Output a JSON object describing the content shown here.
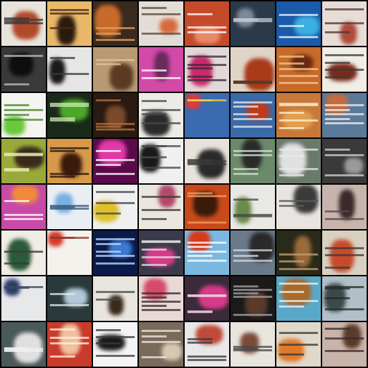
{
  "grid": {
    "rows": 8,
    "cols": 8,
    "background": "#000000",
    "tiles": [
      {
        "bg": "#e8e4dc",
        "blob": "#b04a2a",
        "ink": "#3a3a3a",
        "light": true
      },
      {
        "bg": "#e9b86a",
        "blob": "#2b1a10",
        "ink": "#4a2a10",
        "light": false
      },
      {
        "bg": "#3a2a1e",
        "blob": "#c86a2a",
        "ink": "#e0a060",
        "light": false
      },
      {
        "bg": "#e4ddd6",
        "blob": "#d86a3a",
        "ink": "#5a4a40",
        "light": true
      },
      {
        "bg": "#c44a2a",
        "blob": "#e88a6a",
        "ink": "#ffffff",
        "light": false
      },
      {
        "bg": "#2a3a48",
        "blob": "#7a8a98",
        "ink": "#c0c8d0",
        "light": false
      },
      {
        "bg": "#1a5aa8",
        "blob": "#3ab0e0",
        "ink": "#e8f4ff",
        "light": false
      },
      {
        "bg": "#e8dcd6",
        "blob": "#b04a3a",
        "ink": "#4a3a30",
        "light": true
      },
      {
        "bg": "#3a3a3a",
        "blob": "#0e0e0e",
        "ink": "#bdbdbd",
        "light": false
      },
      {
        "bg": "#e6e6e6",
        "blob": "#1a1a1a",
        "ink": "#3a3a3a",
        "light": true
      },
      {
        "bg": "#b89a72",
        "blob": "#5a3a22",
        "ink": "#e0c09a",
        "light": false
      },
      {
        "bg": "#d24aa8",
        "blob": "#6a2a5a",
        "ink": "#ffffff",
        "light": false
      },
      {
        "bg": "#e2d8d8",
        "blob": "#c82a6a",
        "ink": "#3a2a3a",
        "light": true
      },
      {
        "bg": "#e0d4c6",
        "blob": "#a83a1a",
        "ink": "#5a3a2a",
        "light": true
      },
      {
        "bg": "#c86a2a",
        "blob": "#6a2a10",
        "ink": "#f0c890",
        "light": false
      },
      {
        "bg": "#f0ece6",
        "blob": "#7a2a1a",
        "ink": "#3a3a3a",
        "light": true
      },
      {
        "bg": "#f4f4f0",
        "blob": "#6ac83a",
        "ink": "#4a8a2a",
        "light": true
      },
      {
        "bg": "#1a2a1a",
        "blob": "#4aa82a",
        "ink": "#cfe8b0",
        "light": false
      },
      {
        "bg": "#2a1a10",
        "blob": "#7a4a2a",
        "ink": "#b07040",
        "light": false
      },
      {
        "bg": "#ecebe6",
        "blob": "#2a2a2a",
        "ink": "#4a4a4a",
        "light": true
      },
      {
        "bg": "#3a6ab0",
        "blob": "#e03a3a",
        "ink": "#f0d040",
        "light": false
      },
      {
        "bg": "#3a6aa8",
        "blob": "#c03a1a",
        "ink": "#e8e8e8",
        "light": false
      },
      {
        "bg": "#c8783a",
        "blob": "#e0a050",
        "ink": "#fff2d0",
        "light": false
      },
      {
        "bg": "#5a7a9a",
        "blob": "#c86a3a",
        "ink": "#f0f0f0",
        "light": false
      },
      {
        "bg": "#9aaa3a",
        "blob": "#3a2a1a",
        "ink": "#e8f0b0",
        "light": false
      },
      {
        "bg": "#d89a4a",
        "blob": "#3a1a0a",
        "ink": "#2a1a10",
        "light": false
      },
      {
        "bg": "#5a0a4a",
        "blob": "#e03aa8",
        "ink": "#ffffff",
        "light": false
      },
      {
        "bg": "#f0f0f0",
        "blob": "#1a1a1a",
        "ink": "#4a4a4a",
        "light": true
      },
      {
        "bg": "#e8e2dc",
        "blob": "#2a2a2a",
        "ink": "#3a3a3a",
        "light": true
      },
      {
        "bg": "#6a8a6a",
        "blob": "#2a2a2a",
        "ink": "#d0e0d0",
        "light": false
      },
      {
        "bg": "#6a7a6a",
        "blob": "#e0e0e0",
        "ink": "#e8e8e8",
        "light": false
      },
      {
        "bg": "#3a3a3a",
        "blob": "#9a9a9a",
        "ink": "#d0d0d0",
        "light": false
      },
      {
        "bg": "#c84aa8",
        "blob": "#f08a3a",
        "ink": "#ffffff",
        "light": false
      },
      {
        "bg": "#e8eef4",
        "blob": "#7ab0e0",
        "ink": "#3a5a7a",
        "light": true
      },
      {
        "bg": "#f0f0f0",
        "blob": "#e0c02a",
        "ink": "#4a4a4a",
        "light": true
      },
      {
        "bg": "#ece6e0",
        "blob": "#b04a6a",
        "ink": "#3a3a3a",
        "light": true
      },
      {
        "bg": "#c84a1a",
        "blob": "#3a1a0a",
        "ink": "#f0a060",
        "light": false
      },
      {
        "bg": "#e8e8e4",
        "blob": "#6a8a4a",
        "ink": "#4a4a4a",
        "light": true
      },
      {
        "bg": "#e8e4e0",
        "blob": "#3a3a3a",
        "ink": "#5a5a5a",
        "light": true
      },
      {
        "bg": "#c8b4ac",
        "blob": "#3a2a2a",
        "ink": "#5a4a4a",
        "light": true
      },
      {
        "bg": "#f0ede4",
        "blob": "#2a5a3a",
        "ink": "#3a3a3a",
        "light": true
      },
      {
        "bg": "#f4f0ec",
        "blob": "#d83a2a",
        "ink": "#8a3a2a",
        "light": true
      },
      {
        "bg": "#0a1a4a",
        "blob": "#3a7ad0",
        "ink": "#c0d8ff",
        "light": false
      },
      {
        "bg": "#3a3a4a",
        "blob": "#d83a8a",
        "ink": "#e0e0e0",
        "light": false
      },
      {
        "bg": "#7ab8e0",
        "blob": "#d83a1a",
        "ink": "#ffffff",
        "light": false
      },
      {
        "bg": "#6a7a8a",
        "blob": "#2a2a2a",
        "ink": "#d0d8e0",
        "light": false
      },
      {
        "bg": "#2a2a1a",
        "blob": "#9a6a3a",
        "ink": "#c0a070",
        "light": false
      },
      {
        "bg": "#d8d0c0",
        "blob": "#c84a2a",
        "ink": "#3a3a3a",
        "light": true
      },
      {
        "bg": "#e6e8ea",
        "blob": "#2a3a6a",
        "ink": "#3a4a5a",
        "light": true
      },
      {
        "bg": "#2a3a3a",
        "blob": "#b0c8d8",
        "ink": "#e0e8ec",
        "light": false
      },
      {
        "bg": "#e8e4de",
        "blob": "#3a2a1a",
        "ink": "#4a4a4a",
        "light": true
      },
      {
        "bg": "#e8d8d8",
        "blob": "#d84a6a",
        "ink": "#3a2a2a",
        "light": true
      },
      {
        "bg": "#3a2a3a",
        "blob": "#d83a8a",
        "ink": "#e8c8d8",
        "light": false
      },
      {
        "bg": "#1a1a1a",
        "blob": "#5a3a2a",
        "ink": "#a0a0a0",
        "light": false
      },
      {
        "bg": "#5aa8c8",
        "blob": "#a86a2a",
        "ink": "#f0f0f0",
        "light": false
      },
      {
        "bg": "#b0c0c8",
        "blob": "#3a4a4a",
        "ink": "#2a2a2a",
        "light": true
      },
      {
        "bg": "#4a5a5a",
        "blob": "#e0e0e0",
        "ink": "#f0f0f0",
        "light": false
      },
      {
        "bg": "#c83a2a",
        "blob": "#f0c0a0",
        "ink": "#fff2e0",
        "light": false
      },
      {
        "bg": "#f4f4f4",
        "blob": "#1a1a1a",
        "ink": "#3a3a3a",
        "light": true
      },
      {
        "bg": "#7a6a5a",
        "blob": "#d8c8b0",
        "ink": "#f0e8e0",
        "light": false
      },
      {
        "bg": "#e8e8e8",
        "blob": "#c04a3a",
        "ink": "#3a3a3a",
        "light": true
      },
      {
        "bg": "#e8e4de",
        "blob": "#7a4a3a",
        "ink": "#4a4a4a",
        "light": true
      },
      {
        "bg": "#e0d8c8",
        "blob": "#e07a2a",
        "ink": "#3a3a3a",
        "light": true
      },
      {
        "bg": "#c8b4a8",
        "blob": "#5a3a2a",
        "ink": "#3a2a2a",
        "light": true
      }
    ]
  }
}
